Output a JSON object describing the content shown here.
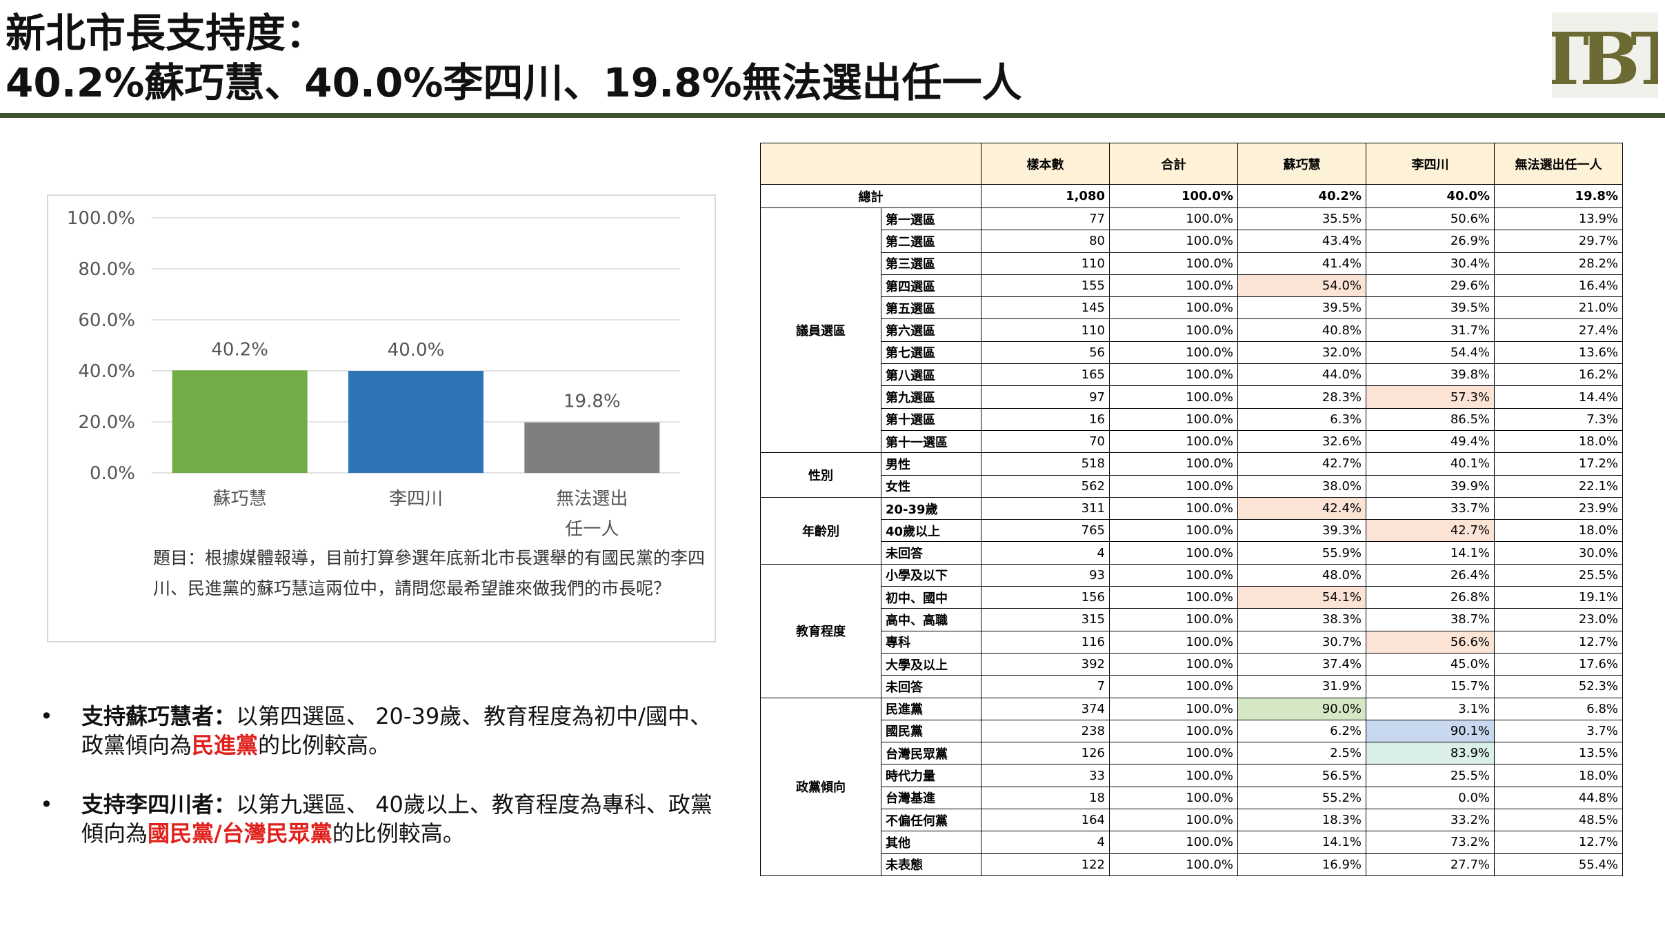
{
  "title": {
    "line1": "新北市長支持度：",
    "line2": "40.2%蘇巧慧、40.0%李四川、19.8%無法選出任一人"
  },
  "logo": {
    "text": "TBT",
    "color": "#6b6a32"
  },
  "colors": {
    "accent_bar": "#3d5233",
    "highlight_red": "#e0201b",
    "hl_pink": "#fbe4d6",
    "hl_green": "#d4e8c6",
    "hl_blue": "#c7d8ef",
    "hl_teal": "#d9efe8"
  },
  "chart_data": {
    "type": "bar",
    "categories": [
      "蘇巧慧",
      "李四川",
      "無法選出任一人"
    ],
    "category_lines": [
      [
        "蘇巧慧"
      ],
      [
        "李四川"
      ],
      [
        "無法選出",
        "任一人"
      ]
    ],
    "values": [
      40.2,
      40.0,
      19.8
    ],
    "data_labels": [
      "40.2%",
      "40.0%",
      "19.8%"
    ],
    "bar_colors": [
      "#70ad47",
      "#2e75b6",
      "#7f7f7f"
    ],
    "ylim": [
      0,
      100
    ],
    "yticks": [
      "0.0%",
      "20.0%",
      "40.0%",
      "60.0%",
      "80.0%",
      "100.0%"
    ],
    "grid": true,
    "caption": "題目：根據媒體報導，目前打算參選年底新北市長選舉的有國民黨的李四川、民進黨的蘇巧慧這兩位中，請問您最希望誰來做我們的市長呢？"
  },
  "bullets": [
    {
      "dot": "•",
      "lead": "支持蘇巧慧者：",
      "text_before": "以第四選區、 20-39歲、教育程度為初中/國中、 政黨傾向為",
      "red": "民進黨",
      "text_after": "的比例較高。"
    },
    {
      "dot": "•",
      "lead": "支持李四川者：",
      "text_before": "以第九選區、 40歲以上、教育程度為專科、政黨傾向為",
      "red": "國民黨/台灣民眾黨",
      "text_after": "的比例較高。"
    }
  ],
  "table": {
    "headers": [
      "樣本數",
      "合計",
      "蘇巧慧",
      "李四川",
      "無法選出任一人"
    ],
    "total": {
      "label": "總計",
      "cells": [
        "1,080",
        "100.0%",
        "40.2%",
        "40.0%",
        "19.8%"
      ]
    },
    "groups": [
      {
        "name": "議員選區",
        "rows": [
          {
            "label": "第一選區",
            "cells": [
              "77",
              "100.0%",
              "35.5%",
              "50.6%",
              "13.9%"
            ]
          },
          {
            "label": "第二選區",
            "cells": [
              "80",
              "100.0%",
              "43.4%",
              "26.9%",
              "29.7%"
            ]
          },
          {
            "label": "第三選區",
            "cells": [
              "110",
              "100.0%",
              "41.4%",
              "30.4%",
              "28.2%"
            ]
          },
          {
            "label": "第四選區",
            "cells": [
              "155",
              "100.0%",
              "54.0%",
              "29.6%",
              "16.4%"
            ],
            "hl": {
              "2": "pink"
            }
          },
          {
            "label": "第五選區",
            "cells": [
              "145",
              "100.0%",
              "39.5%",
              "39.5%",
              "21.0%"
            ]
          },
          {
            "label": "第六選區",
            "cells": [
              "110",
              "100.0%",
              "40.8%",
              "31.7%",
              "27.4%"
            ]
          },
          {
            "label": "第七選區",
            "cells": [
              "56",
              "100.0%",
              "32.0%",
              "54.4%",
              "13.6%"
            ]
          },
          {
            "label": "第八選區",
            "cells": [
              "165",
              "100.0%",
              "44.0%",
              "39.8%",
              "16.2%"
            ]
          },
          {
            "label": "第九選區",
            "cells": [
              "97",
              "100.0%",
              "28.3%",
              "57.3%",
              "14.4%"
            ],
            "hl": {
              "3": "pink"
            }
          },
          {
            "label": "第十選區",
            "cells": [
              "16",
              "100.0%",
              "6.3%",
              "86.5%",
              "7.3%"
            ]
          },
          {
            "label": "第十一選區",
            "cells": [
              "70",
              "100.0%",
              "32.6%",
              "49.4%",
              "18.0%"
            ]
          }
        ]
      },
      {
        "name": "性別",
        "rows": [
          {
            "label": "男性",
            "cells": [
              "518",
              "100.0%",
              "42.7%",
              "40.1%",
              "17.2%"
            ]
          },
          {
            "label": "女性",
            "cells": [
              "562",
              "100.0%",
              "38.0%",
              "39.9%",
              "22.1%"
            ]
          }
        ]
      },
      {
        "name": "年齡別",
        "rows": [
          {
            "label": "20-39歲",
            "cells": [
              "311",
              "100.0%",
              "42.4%",
              "33.7%",
              "23.9%"
            ],
            "hl": {
              "2": "pink"
            }
          },
          {
            "label": "40歲以上",
            "cells": [
              "765",
              "100.0%",
              "39.3%",
              "42.7%",
              "18.0%"
            ],
            "hl": {
              "3": "pink"
            }
          },
          {
            "label": "未回答",
            "cells": [
              "4",
              "100.0%",
              "55.9%",
              "14.1%",
              "30.0%"
            ]
          }
        ]
      },
      {
        "name": "教育程度",
        "rows": [
          {
            "label": "小學及以下",
            "cells": [
              "93",
              "100.0%",
              "48.0%",
              "26.4%",
              "25.5%"
            ]
          },
          {
            "label": "初中、國中",
            "cells": [
              "156",
              "100.0%",
              "54.1%",
              "26.8%",
              "19.1%"
            ],
            "hl": {
              "2": "pink"
            }
          },
          {
            "label": "高中、高職",
            "cells": [
              "315",
              "100.0%",
              "38.3%",
              "38.7%",
              "23.0%"
            ]
          },
          {
            "label": "專科",
            "cells": [
              "116",
              "100.0%",
              "30.7%",
              "56.6%",
              "12.7%"
            ],
            "hl": {
              "3": "pink"
            }
          },
          {
            "label": "大學及以上",
            "cells": [
              "392",
              "100.0%",
              "37.4%",
              "45.0%",
              "17.6%"
            ]
          },
          {
            "label": "未回答",
            "cells": [
              "7",
              "100.0%",
              "31.9%",
              "15.7%",
              "52.3%"
            ]
          }
        ]
      },
      {
        "name": "政黨傾向",
        "rows": [
          {
            "label": "民進黨",
            "cells": [
              "374",
              "100.0%",
              "90.0%",
              "3.1%",
              "6.8%"
            ],
            "hl": {
              "2": "green"
            }
          },
          {
            "label": "國民黨",
            "cells": [
              "238",
              "100.0%",
              "6.2%",
              "90.1%",
              "3.7%"
            ],
            "hl": {
              "3": "blue"
            }
          },
          {
            "label": "台灣民眾黨",
            "cells": [
              "126",
              "100.0%",
              "2.5%",
              "83.9%",
              "13.5%"
            ],
            "hl": {
              "3": "teal"
            }
          },
          {
            "label": "時代力量",
            "cells": [
              "33",
              "100.0%",
              "56.5%",
              "25.5%",
              "18.0%"
            ]
          },
          {
            "label": "台灣基進",
            "cells": [
              "18",
              "100.0%",
              "55.2%",
              "0.0%",
              "44.8%"
            ]
          },
          {
            "label": "不偏任何黨",
            "cells": [
              "164",
              "100.0%",
              "18.3%",
              "33.2%",
              "48.5%"
            ]
          },
          {
            "label": "其他",
            "cells": [
              "4",
              "100.0%",
              "14.1%",
              "73.2%",
              "12.7%"
            ]
          },
          {
            "label": "未表態",
            "cells": [
              "122",
              "100.0%",
              "16.9%",
              "27.7%",
              "55.4%"
            ]
          }
        ]
      }
    ]
  }
}
